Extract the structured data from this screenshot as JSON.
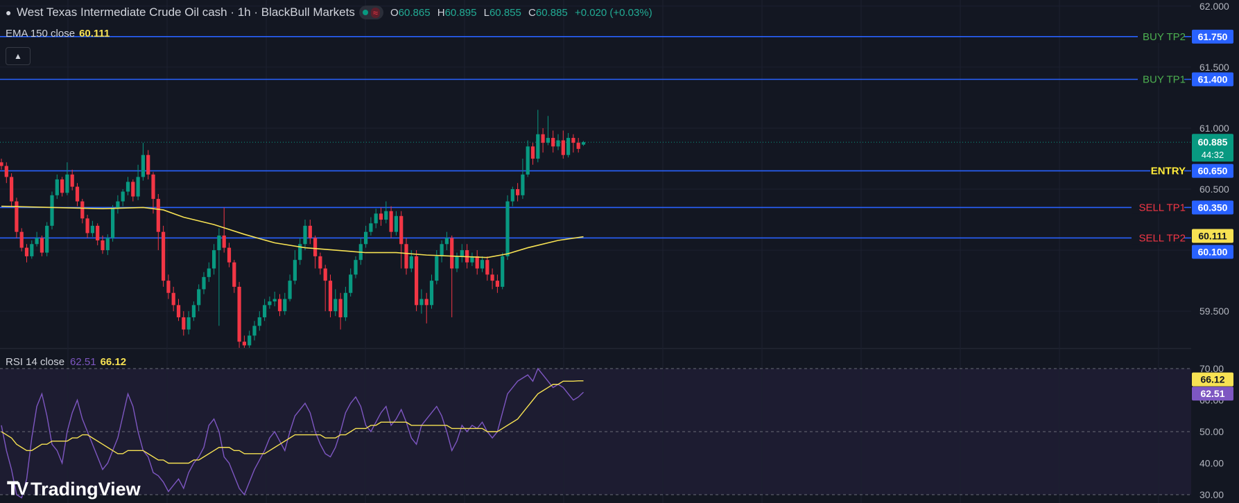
{
  "header": {
    "title": "West Texas Intermediate Crude Oil cash · 1h · BlackBull Markets",
    "ohlc": [
      {
        "k": "O",
        "v": "60.865"
      },
      {
        "k": "H",
        "v": "60.895"
      },
      {
        "k": "L",
        "v": "60.855"
      },
      {
        "k": "C",
        "v": "60.885"
      }
    ],
    "change": "+0.020 (+0.03%)",
    "ema_label": "EMA 150 close",
    "ema_value": "60.111",
    "rsi_label": "RSI 14 close",
    "rsi_value": "62.51",
    "rsi_ma_value": "66.12"
  },
  "colors": {
    "background": "#131722",
    "up": "#089981",
    "down": "#f23645",
    "level_line": "#2962ff",
    "ema": "#f7e253",
    "rsi": "#7e57c2",
    "buy_label": "#4caf50",
    "entry_label": "#ffeb3b",
    "sell_label": "#f23645"
  },
  "icons": [
    "drop-icon",
    "collapse-chevron-up-icon",
    "tradingview-logo"
  ],
  "brand": "TradingView",
  "chart_data": [
    {
      "type": "candlestick",
      "title": "West Texas Intermediate Crude Oil cash · 1h · BlackBull Markets",
      "ylim": [
        59.2,
        62.05
      ],
      "price_ticks": [
        "62.000",
        "61.500",
        "61.000",
        "60.500",
        "59.500"
      ],
      "levels": [
        {
          "label": "BUY TP2",
          "value": 61.75,
          "tag": "61.750",
          "kind": "buy"
        },
        {
          "label": "BUY TP1",
          "value": 61.4,
          "tag": "61.400",
          "kind": "buy"
        },
        {
          "label": "ENTRY",
          "value": 60.65,
          "tag": "60.650",
          "kind": "entry"
        },
        {
          "label": "SELL TP1",
          "value": 60.35,
          "tag": "60.350",
          "kind": "sell"
        },
        {
          "label": "SELL TP2",
          "value": 60.1,
          "tag": "60.100",
          "kind": "sell"
        }
      ],
      "last_price": {
        "value": 60.885,
        "tag": "60.885",
        "countdown": "44:32"
      },
      "ema_tag": {
        "value": 60.111,
        "tag": "60.111"
      },
      "candles": [
        [
          60.72,
          60.69,
          60.75,
          60.66
        ],
        [
          60.69,
          60.6,
          60.72,
          60.55
        ],
        [
          60.6,
          60.4,
          60.63,
          60.35
        ],
        [
          60.4,
          60.15,
          60.43,
          60.1
        ],
        [
          60.15,
          60.02,
          60.18,
          59.99
        ],
        [
          60.02,
          59.95,
          60.05,
          59.9
        ],
        [
          59.95,
          60.05,
          60.08,
          59.93
        ],
        [
          60.05,
          60.1,
          60.15,
          60.03
        ],
        [
          60.1,
          59.98,
          60.12,
          59.95
        ],
        [
          59.98,
          60.2,
          60.23,
          59.95
        ],
        [
          60.2,
          60.45,
          60.48,
          60.17
        ],
        [
          60.45,
          60.58,
          60.62,
          60.42
        ],
        [
          60.58,
          60.47,
          60.6,
          60.44
        ],
        [
          60.47,
          60.62,
          60.72,
          60.45
        ],
        [
          60.62,
          60.52,
          60.66,
          60.49
        ],
        [
          60.52,
          60.4,
          60.55,
          60.36
        ],
        [
          60.4,
          60.26,
          60.42,
          60.22
        ],
        [
          60.26,
          60.14,
          60.29,
          60.1
        ],
        [
          60.14,
          60.2,
          60.24,
          60.11
        ],
        [
          60.2,
          60.08,
          60.22,
          60.04
        ],
        [
          60.08,
          60.0,
          60.12,
          59.97
        ],
        [
          60.0,
          60.1,
          60.13,
          59.96
        ],
        [
          60.1,
          60.34,
          60.37,
          60.07
        ],
        [
          60.34,
          60.4,
          60.45,
          60.3
        ],
        [
          60.4,
          60.48,
          60.5,
          60.36
        ],
        [
          60.48,
          60.56,
          60.6,
          60.45
        ],
        [
          60.56,
          60.44,
          60.58,
          60.4
        ],
        [
          60.44,
          60.6,
          60.7,
          60.41
        ],
        [
          60.6,
          60.78,
          60.88,
          60.57
        ],
        [
          60.78,
          60.62,
          60.82,
          60.58
        ],
        [
          60.62,
          60.42,
          60.64,
          60.3
        ],
        [
          60.42,
          60.15,
          60.46,
          60.0
        ],
        [
          60.15,
          59.75,
          60.2,
          59.7
        ],
        [
          59.75,
          59.65,
          59.8,
          59.6
        ],
        [
          59.65,
          59.55,
          59.7,
          59.5
        ],
        [
          59.55,
          59.45,
          59.6,
          59.42
        ],
        [
          59.45,
          59.35,
          59.5,
          59.3
        ],
        [
          59.35,
          59.45,
          59.5,
          59.31
        ],
        [
          59.45,
          59.55,
          59.58,
          59.42
        ],
        [
          59.55,
          59.68,
          59.72,
          59.5
        ],
        [
          59.68,
          59.78,
          59.82,
          59.64
        ],
        [
          59.78,
          59.85,
          59.9,
          59.74
        ],
        [
          59.85,
          60.0,
          60.05,
          59.8
        ],
        [
          60.0,
          60.12,
          60.18,
          59.38
        ],
        [
          60.12,
          60.02,
          60.35,
          59.98
        ],
        [
          60.02,
          59.9,
          60.06,
          59.86
        ],
        [
          59.9,
          59.7,
          59.92,
          59.65
        ],
        [
          59.7,
          59.25,
          59.74,
          59.2
        ],
        [
          59.25,
          59.22,
          59.3,
          59.2
        ],
        [
          59.22,
          59.3,
          59.34,
          59.2
        ],
        [
          59.3,
          59.38,
          59.42,
          59.26
        ],
        [
          59.38,
          59.45,
          59.5,
          59.34
        ],
        [
          59.45,
          59.55,
          59.6,
          59.42
        ],
        [
          59.55,
          59.58,
          59.62,
          59.52
        ],
        [
          59.58,
          59.6,
          59.66,
          59.54
        ],
        [
          59.6,
          59.5,
          59.64,
          59.46
        ],
        [
          59.5,
          59.6,
          59.65,
          59.47
        ],
        [
          59.6,
          59.75,
          59.8,
          59.58
        ],
        [
          59.75,
          59.92,
          60.0,
          59.72
        ],
        [
          59.92,
          60.05,
          60.1,
          59.88
        ],
        [
          60.05,
          60.2,
          60.25,
          60.0
        ],
        [
          60.2,
          60.1,
          60.25,
          60.05
        ],
        [
          60.1,
          59.95,
          60.12,
          59.85
        ],
        [
          59.95,
          59.85,
          59.98,
          59.8
        ],
        [
          59.85,
          59.75,
          59.88,
          59.5
        ],
        [
          59.75,
          59.5,
          59.8,
          59.45
        ],
        [
          59.5,
          59.6,
          59.68,
          59.46
        ],
        [
          59.6,
          59.45,
          59.65,
          59.35
        ],
        [
          59.45,
          59.65,
          59.7,
          59.42
        ],
        [
          59.65,
          59.8,
          59.85,
          59.62
        ],
        [
          59.8,
          59.92,
          59.95,
          59.77
        ],
        [
          59.92,
          60.05,
          60.1,
          59.88
        ],
        [
          60.05,
          60.15,
          60.2,
          60.02
        ],
        [
          60.15,
          60.22,
          60.27,
          60.12
        ],
        [
          60.22,
          60.3,
          60.34,
          60.18
        ],
        [
          60.3,
          60.25,
          60.35,
          60.2
        ],
        [
          60.25,
          60.32,
          60.4,
          60.22
        ],
        [
          60.32,
          60.15,
          60.36,
          60.1
        ],
        [
          60.15,
          60.28,
          60.32,
          60.12
        ],
        [
          60.28,
          60.05,
          60.32,
          59.85
        ],
        [
          60.05,
          59.85,
          60.1,
          59.8
        ],
        [
          59.85,
          59.95,
          60.0,
          59.82
        ],
        [
          59.95,
          59.55,
          60.0,
          59.5
        ],
        [
          59.55,
          59.6,
          59.68,
          59.48
        ],
        [
          59.6,
          59.55,
          59.65,
          59.4
        ],
        [
          59.55,
          59.75,
          59.8,
          59.52
        ],
        [
          59.75,
          59.95,
          60.0,
          59.72
        ],
        [
          59.95,
          60.05,
          60.08,
          59.9
        ],
        [
          60.05,
          60.1,
          60.15,
          60.0
        ],
        [
          60.1,
          59.85,
          60.12,
          59.45
        ],
        [
          59.85,
          59.95,
          59.98,
          59.82
        ],
        [
          59.95,
          60.0,
          60.05,
          59.9
        ],
        [
          60.0,
          59.9,
          60.05,
          59.85
        ],
        [
          59.9,
          59.95,
          59.98,
          59.87
        ],
        [
          59.95,
          59.85,
          60.0,
          59.8
        ],
        [
          59.85,
          59.92,
          59.95,
          59.82
        ],
        [
          59.92,
          59.8,
          59.95,
          59.75
        ],
        [
          59.8,
          59.75,
          59.85,
          59.68
        ],
        [
          59.75,
          59.7,
          59.8,
          59.65
        ],
        [
          59.7,
          59.95,
          59.98,
          59.68
        ],
        [
          59.95,
          60.4,
          60.45,
          59.92
        ],
        [
          60.4,
          60.5,
          60.52,
          60.36
        ],
        [
          60.5,
          60.45,
          60.55,
          60.4
        ],
        [
          60.45,
          60.62,
          60.75,
          60.42
        ],
        [
          60.62,
          60.85,
          60.9,
          60.6
        ],
        [
          60.85,
          60.75,
          60.88,
          60.7
        ],
        [
          60.75,
          60.95,
          61.15,
          60.72
        ],
        [
          60.95,
          60.88,
          61.0,
          60.8
        ],
        [
          60.88,
          60.92,
          61.1,
          60.86
        ],
        [
          60.92,
          60.85,
          60.98,
          60.8
        ],
        [
          60.85,
          60.9,
          60.95,
          60.82
        ],
        [
          60.9,
          60.78,
          60.98,
          60.75
        ],
        [
          60.78,
          60.92,
          60.96,
          60.76
        ],
        [
          60.92,
          60.88,
          60.95,
          60.8
        ],
        [
          60.88,
          60.83,
          60.92,
          60.8
        ],
        [
          60.865,
          60.885,
          60.895,
          60.855
        ]
      ],
      "ema": [
        [
          0,
          60.36
        ],
        [
          10,
          60.35
        ],
        [
          20,
          60.34
        ],
        [
          28,
          60.35
        ],
        [
          32,
          60.33
        ],
        [
          36,
          60.27
        ],
        [
          42,
          60.21
        ],
        [
          48,
          60.13
        ],
        [
          54,
          60.06
        ],
        [
          60,
          60.02
        ],
        [
          66,
          60.0
        ],
        [
          72,
          59.98
        ],
        [
          78,
          59.98
        ],
        [
          84,
          59.96
        ],
        [
          90,
          59.95
        ],
        [
          96,
          59.94
        ],
        [
          100,
          59.97
        ],
        [
          104,
          60.02
        ],
        [
          110,
          60.08
        ],
        [
          115,
          60.11
        ]
      ]
    },
    {
      "type": "line",
      "title": "RSI 14 close",
      "ylim": [
        30,
        70
      ],
      "ticks": [
        "70.00",
        "60.00",
        "50.00",
        "40.00",
        "30.00"
      ],
      "bands": [
        30,
        50,
        70
      ],
      "series": [
        {
          "name": "RSI",
          "values": [
            52,
            44,
            38,
            30,
            29,
            35,
            48,
            58,
            62,
            55,
            46,
            44,
            40,
            50,
            56,
            60,
            54,
            50,
            46,
            42,
            38,
            40,
            44,
            48,
            55,
            62,
            58,
            50,
            44,
            42,
            37,
            36,
            34,
            31,
            33,
            35,
            32,
            37,
            40,
            42,
            45,
            52,
            54,
            50,
            42,
            40,
            36,
            32,
            30,
            34,
            38,
            41,
            44,
            48,
            50,
            47,
            44,
            50,
            55,
            57,
            59,
            56,
            50,
            46,
            43,
            42,
            45,
            50,
            56,
            59,
            61,
            58,
            52,
            50,
            53,
            56,
            58,
            52,
            54,
            57,
            53,
            48,
            46,
            52,
            54,
            56,
            58,
            55,
            50,
            44,
            47,
            52,
            50,
            52,
            51,
            53,
            50,
            48,
            50,
            56,
            62,
            64,
            66,
            67,
            68,
            66,
            70,
            68,
            66,
            64,
            65,
            64,
            62,
            60,
            61,
            62.51
          ]
        },
        {
          "name": "RSI MA",
          "values": [
            50,
            49,
            48,
            46,
            45,
            44,
            44,
            45,
            46,
            46,
            47,
            47,
            47,
            47,
            48,
            48,
            49,
            49,
            48,
            47,
            46,
            45,
            44,
            43,
            43,
            44,
            44,
            44,
            44,
            43,
            42,
            41,
            41,
            40,
            40,
            40,
            40,
            40,
            41,
            41,
            42,
            43,
            44,
            45,
            45,
            45,
            44,
            44,
            43,
            43,
            43,
            43,
            43,
            44,
            45,
            46,
            47,
            48,
            49,
            49,
            49,
            49,
            49,
            49,
            48,
            48,
            48,
            49,
            49,
            50,
            51,
            51,
            51,
            52,
            52,
            53,
            53,
            53,
            53,
            53,
            53,
            52,
            52,
            52,
            52,
            52,
            52,
            52,
            52,
            51,
            51,
            51,
            51,
            51,
            51,
            51,
            50,
            50,
            50,
            51,
            52,
            53,
            54,
            56,
            58,
            60,
            62,
            63,
            64,
            65,
            65,
            66,
            66,
            66,
            66.12,
            66.12
          ]
        }
      ]
    }
  ]
}
